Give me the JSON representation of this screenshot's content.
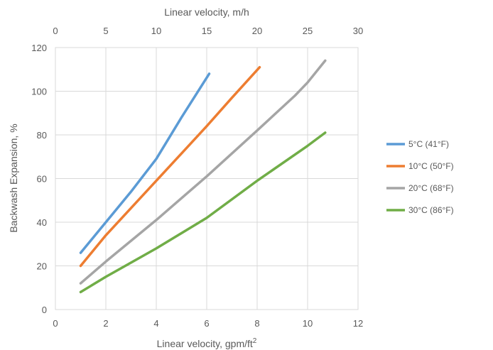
{
  "chart_data": {
    "type": "line",
    "title": "",
    "xlabel_bottom": "Linear velocity, gpm/ft",
    "xlabel_bottom_sup": "2",
    "xlabel_top": "Linear velocity, m/h",
    "ylabel": "Backwash Expansion, %",
    "xlim": [
      0,
      12
    ],
    "xticks": [
      0,
      2,
      4,
      6,
      8,
      10,
      12
    ],
    "x2lim": [
      0,
      30
    ],
    "x2ticks": [
      0,
      5,
      10,
      15,
      20,
      25,
      30
    ],
    "ylim": [
      0,
      120
    ],
    "yticks": [
      0,
      20,
      40,
      60,
      80,
      100,
      120
    ],
    "grid": true,
    "legend_position": "right",
    "series": [
      {
        "name": "5°C (41°F)",
        "color": "#5b9bd5",
        "x": [
          1,
          2,
          3,
          4,
          5,
          6.1
        ],
        "y": [
          26,
          40,
          54,
          69,
          88,
          108
        ]
      },
      {
        "name": "10°C (50°F)",
        "color": "#ed7d31",
        "x": [
          1,
          2,
          4,
          6,
          7,
          8.1
        ],
        "y": [
          20,
          34,
          59,
          84,
          97,
          111
        ]
      },
      {
        "name": "20°C (68°F)",
        "color": "#a5a5a5",
        "x": [
          1,
          2,
          4,
          6,
          8,
          9.5,
          10,
          10.7
        ],
        "y": [
          12,
          22,
          41,
          61,
          82,
          98,
          104,
          114
        ]
      },
      {
        "name": "30°C (86°F)",
        "color": "#70ad47",
        "x": [
          1,
          2,
          4,
          6,
          8,
          10,
          10.7
        ],
        "y": [
          8,
          15,
          28,
          42,
          59,
          75,
          81
        ]
      }
    ]
  }
}
